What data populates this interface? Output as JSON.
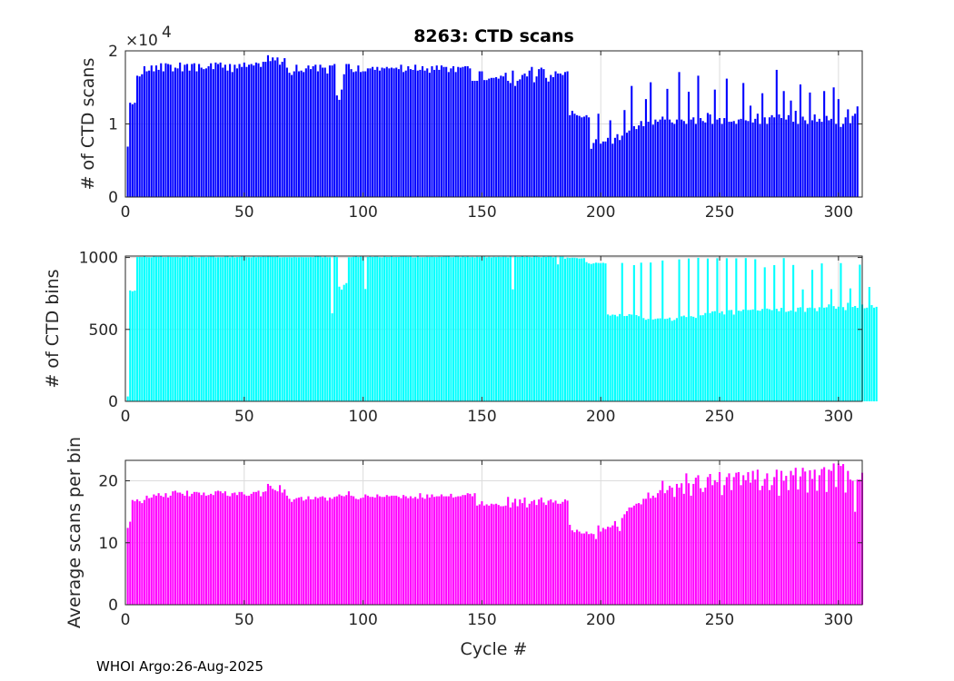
{
  "chart_data": [
    {
      "type": "bar",
      "title": "8263: CTD scans",
      "ylabel": "# of CTD scans",
      "xlabel": "",
      "exponent_label": "×10",
      "exponent_power": "4",
      "xlim": [
        0,
        310
      ],
      "ylim": [
        0,
        2
      ],
      "xticks": [
        "0",
        "50",
        "100",
        "150",
        "200",
        "250",
        "300"
      ],
      "yticks": [
        "0",
        "1",
        "2"
      ],
      "color": "#0000ff",
      "units": "x10^4",
      "x_start": 1,
      "values": [
        0.69,
        1.29,
        1.27,
        1.29,
        1.66,
        1.65,
        1.68,
        1.79,
        1.72,
        1.73,
        1.8,
        1.72,
        1.8,
        1.74,
        1.83,
        1.72,
        1.83,
        1.82,
        1.81,
        1.72,
        1.77,
        1.76,
        1.84,
        1.72,
        1.81,
        1.82,
        1.73,
        1.82,
        1.83,
        1.72,
        1.82,
        1.77,
        1.75,
        1.76,
        1.79,
        1.83,
        1.75,
        1.84,
        1.82,
        1.84,
        1.77,
        1.81,
        1.73,
        1.82,
        1.71,
        1.81,
        1.76,
        1.82,
        1.78,
        1.84,
        1.78,
        1.81,
        1.82,
        1.8,
        1.84,
        1.83,
        1.78,
        1.85,
        1.85,
        1.94,
        1.86,
        1.91,
        1.87,
        1.91,
        1.81,
        1.85,
        1.9,
        1.77,
        1.7,
        1.67,
        1.72,
        1.81,
        1.72,
        1.73,
        1.71,
        1.76,
        1.8,
        1.75,
        1.79,
        1.81,
        1.72,
        1.81,
        1.77,
        1.77,
        1.69,
        1.8,
        1.8,
        1.82,
        1.39,
        1.33,
        1.47,
        1.68,
        1.82,
        1.82,
        1.75,
        1.71,
        1.72,
        1.8,
        1.71,
        1.72,
        1.72,
        1.76,
        1.76,
        1.78,
        1.74,
        1.78,
        1.73,
        1.77,
        1.76,
        1.78,
        1.76,
        1.77,
        1.76,
        1.77,
        1.75,
        1.81,
        1.71,
        1.73,
        1.79,
        1.75,
        1.74,
        1.81,
        1.73,
        1.74,
        1.79,
        1.73,
        1.76,
        1.7,
        1.79,
        1.74,
        1.8,
        1.74,
        1.8,
        1.78,
        1.78,
        1.71,
        1.76,
        1.79,
        1.71,
        1.78,
        1.77,
        1.78,
        1.79,
        1.79,
        1.76,
        1.59,
        1.59,
        1.59,
        1.72,
        1.72,
        1.6,
        1.6,
        1.62,
        1.63,
        1.63,
        1.64,
        1.62,
        1.66,
        1.65,
        1.7,
        1.59,
        1.56,
        1.73,
        1.52,
        1.59,
        1.61,
        1.67,
        1.69,
        1.65,
        1.73,
        1.78,
        1.57,
        1.65,
        1.75,
        1.77,
        1.75,
        1.63,
        1.58,
        1.67,
        1.64,
        1.72,
        1.69,
        1.69,
        1.67,
        1.71,
        1.72,
        1.12,
        1.18,
        1.14,
        1.12,
        1.11,
        1.09,
        1.1,
        1.12,
        1.09,
        0.66,
        0.74,
        0.79,
        1.14,
        0.73,
        0.76,
        0.76,
        0.81,
        1.05,
        0.73,
        0.81,
        0.86,
        0.78,
        0.84,
        1.19,
        0.88,
        0.91,
        1.52,
        0.97,
        0.93,
        0.98,
        1.04,
        0.97,
        1.34,
        1.03,
        1.57,
        0.99,
        1.06,
        1.03,
        1.06,
        1.1,
        1.06,
        1.48,
        1.06,
        1.02,
        1.0,
        1.06,
        1.71,
        1.06,
        1.04,
        1.0,
        1.44,
        1.06,
        1.09,
        1.0,
        1.66,
        1.08,
        1.04,
        1.02,
        1.15,
        1.13,
        1.0,
        1.47,
        1.06,
        1.08,
        1.0,
        1.08,
        1.62,
        1.03,
        1.03,
        1.04,
        1.0,
        1.06,
        1.07,
        1.56,
        1.05,
        1.04,
        1.25,
        1.02,
        1.07,
        1.14,
        1.0,
        1.42,
        1.09,
        1.0,
        1.09,
        1.12,
        1.09,
        1.74,
        1.13,
        1.08,
        1.45,
        1.06,
        1.12,
        1.32,
        1.03,
        1.18,
        1.0,
        1.54,
        1.1,
        1.05,
        1.0,
        1.43,
        1.05,
        1.13,
        1.03,
        1.07,
        1.03,
        1.45,
        1.11,
        1.05,
        1.07,
        1.5,
        1.0,
        1.34,
        0.96,
        1.0,
        1.09,
        1.2,
        1.01,
        1.11,
        1.14,
        1.24
      ]
    },
    {
      "type": "bar",
      "title": "",
      "ylabel": "# of CTD bins",
      "xlabel": "",
      "xlim": [
        0,
        310
      ],
      "ylim": [
        0,
        1010
      ],
      "xticks": [
        "0",
        "50",
        "100",
        "150",
        "200",
        "250",
        "300"
      ],
      "yticks": [
        "0",
        "500",
        "1000"
      ],
      "color": "#00ffff",
      "x_start": 1,
      "values": [
        34,
        771,
        765,
        770,
        1003,
        1004,
        1003,
        1007,
        1003,
        1002,
        1001,
        1007,
        1005,
        1005,
        1007,
        1002,
        1003,
        1005,
        1004,
        1003,
        1003,
        1004,
        1001,
        1005,
        1006,
        1002,
        1006,
        1007,
        1004,
        1002,
        1001,
        1005,
        1005,
        1002,
        1005,
        1006,
        1006,
        1001,
        1002,
        1002,
        1002,
        1006,
        1007,
        1001,
        1006,
        1001,
        1003,
        1004,
        1006,
        1005,
        1003,
        1002,
        1001,
        1006,
        1002,
        1005,
        1004,
        1006,
        1005,
        1006,
        1006,
        1005,
        1005,
        1007,
        1001,
        1002,
        1003,
        1002,
        1003,
        1001,
        1004,
        1002,
        1002,
        1003,
        1002,
        1002,
        1002,
        1003,
        1002,
        1007,
        1007,
        1006,
        1001,
        1006,
        1002,
        1002,
        612,
        1007,
        1003,
        797,
        777,
        810,
        822,
        1002,
        1002,
        1005,
        1007,
        1003,
        1006,
        1004,
        781,
        1004,
        1006,
        1004,
        1006,
        1006,
        1002,
        1001,
        1006,
        1004,
        1004,
        1006,
        1003,
        1004,
        1004,
        1006,
        1006,
        1006,
        1005,
        1006,
        1001,
        1001,
        1007,
        1002,
        1002,
        1003,
        1005,
        1004,
        1005,
        1003,
        1003,
        1005,
        1004,
        1006,
        1006,
        1007,
        1002,
        1002,
        1007,
        1006,
        1001,
        1006,
        1004,
        1006,
        1002,
        1004,
        1001,
        1005,
        1003,
        1005,
        1006,
        1001,
        1005,
        1001,
        1005,
        1003,
        1005,
        1003,
        1005,
        1005,
        1001,
        1006,
        779,
        1006,
        1004,
        1004,
        1007,
        1004,
        1006,
        1004,
        1001,
        1007,
        1006,
        1004,
        1001,
        1006,
        1004,
        1006,
        1006,
        1001,
        1006,
        952,
        1006,
        1006,
        992,
        1000,
        997,
        999,
        999,
        996,
        993,
        994,
        996,
        968,
        959,
        955,
        959,
        964,
        962,
        960,
        963,
        959,
        604,
        596,
        603,
        601,
        591,
        607,
        962,
        593,
        594,
        606,
        603,
        947,
        600,
        592,
        964,
        579,
        567,
        573,
        965,
        569,
        573,
        576,
        577,
        979,
        573,
        575,
        582,
        560,
        566,
        579,
        987,
        591,
        596,
        586,
        993,
        592,
        588,
        580,
        998,
        598,
        599,
        614,
        993,
        614,
        625,
        627,
        995,
        614,
        626,
        604,
        995,
        634,
        635,
        603,
        994,
        630,
        628,
        638,
        996,
        635,
        635,
        639,
        988,
        632,
        630,
        642,
        932,
        645,
        640,
        634,
        947,
        643,
        627,
        650,
        996,
        622,
        626,
        632,
        948,
        623,
        651,
        654,
        778,
        622,
        649,
        652,
        914,
        648,
        627,
        654,
        959,
        651,
        654,
        674,
        780,
        662,
        644,
        658,
        961,
        655,
        634,
        685,
        785,
        656,
        663,
        650,
        950,
        673,
        647,
        651,
        795,
        669,
        651,
        657
      ]
    },
    {
      "type": "bar",
      "title": "",
      "ylabel": "Average scans per bin",
      "xlabel": "Cycle #",
      "xlim": [
        0,
        310
      ],
      "ylim": [
        0,
        23.3
      ],
      "xticks": [
        "0",
        "50",
        "100",
        "150",
        "200",
        "250",
        "300"
      ],
      "yticks": [
        "0",
        "10",
        "20"
      ],
      "color": "#ff00ff",
      "x_start": 1,
      "values": [
        12.4,
        13.4,
        16.9,
        16.7,
        17.0,
        16.7,
        16.4,
        16.9,
        17.6,
        17.2,
        17.3,
        17.8,
        17.6,
        18.0,
        17.6,
        17.4,
        18.0,
        17.3,
        17.6,
        18.3,
        18.4,
        18.1,
        18.1,
        17.9,
        17.6,
        18.4,
        17.5,
        17.9,
        18.2,
        18.2,
        18.1,
        17.7,
        18.1,
        17.6,
        17.7,
        17.9,
        17.7,
        18.3,
        18.4,
        18.3,
        18.0,
        18.3,
        17.6,
        17.5,
        18.0,
        18.1,
        17.7,
        18.2,
        18.2,
        17.8,
        17.6,
        17.6,
        17.9,
        18.2,
        18.2,
        18.4,
        17.5,
        18.2,
        18.3,
        19.5,
        19.2,
        18.7,
        18.5,
        18.3,
        19.3,
        18.1,
        18.6,
        17.6,
        17.1,
        16.6,
        17.0,
        17.2,
        17.3,
        17.4,
        16.8,
        17.0,
        17.5,
        17.0,
        17.0,
        17.4,
        17.2,
        17.4,
        17.5,
        17.3,
        16.8,
        17.3,
        17.1,
        17.4,
        17.5,
        17.8,
        17.6,
        17.5,
        17.7,
        18.3,
        17.6,
        17.5,
        17.1,
        17.0,
        17.2,
        17.3,
        17.8,
        17.6,
        17.4,
        17.4,
        17.3,
        17.8,
        17.5,
        17.4,
        17.4,
        17.7,
        17.5,
        17.6,
        17.6,
        17.6,
        17.4,
        17.2,
        17.7,
        17.5,
        17.2,
        17.5,
        17.2,
        17.4,
        17.1,
        18.0,
        17.3,
        17.1,
        17.8,
        17.3,
        17.8,
        17.4,
        17.5,
        17.5,
        17.8,
        17.5,
        17.5,
        17.5,
        17.9,
        17.3,
        17.4,
        17.5,
        17.5,
        17.7,
        17.7,
        18.0,
        17.9,
        17.5,
        18.0,
        16.0,
        16.2,
        16.7,
        16.0,
        16.2,
        16.0,
        16.3,
        16.2,
        16.3,
        16.1,
        15.9,
        15.9,
        16.0,
        17.4,
        15.7,
        16.5,
        17.1,
        15.9,
        17.0,
        16.4,
        17.3,
        15.7,
        16.3,
        16.7,
        16.9,
        16.1,
        17.0,
        17.3,
        16.5,
        16.1,
        16.8,
        17.0,
        16.5,
        16.8,
        16.3,
        16.3,
        16.6,
        17.0,
        16.8,
        12.9,
        12.0,
        11.7,
        12.1,
        11.8,
        11.5,
        11.5,
        11.8,
        11.4,
        11.5,
        11.4,
        10.6,
        12.8,
        11.8,
        12.4,
        12.2,
        12.6,
        12.5,
        12.8,
        13.5,
        12.6,
        11.9,
        14.0,
        14.6,
        15.1,
        15.7,
        15.7,
        16.0,
        16.3,
        16.4,
        16.2,
        17.1,
        17.1,
        18.1,
        17.2,
        17.6,
        17.3,
        18.0,
        18.5,
        20.0,
        18.0,
        18.5,
        19.2,
        18.9,
        17.4,
        19.5,
        18.9,
        19.6,
        17.9,
        21.2,
        19.6,
        17.6,
        19.5,
        20.5,
        20.9,
        18.8,
        18.2,
        18.9,
        20.6,
        21.1,
        19.3,
        20.1,
        19.8,
        21.4,
        17.7,
        19.3,
        20.6,
        21.2,
        18.5,
        20.6,
        21.3,
        21.4,
        19.3,
        20.9,
        20.1,
        21.4,
        19.7,
        21.6,
        20.2,
        21.8,
        18.5,
        19.2,
        20.3,
        21.2,
        18.5,
        19.3,
        20.6,
        21.8,
        17.6,
        21.6,
        20.0,
        20.8,
        18.5,
        21.6,
        20.9,
        22.1,
        18.6,
        20.7,
        22.1,
        21.5,
        18.1,
        21.7,
        20.3,
        21.8,
        18.4,
        20.9,
        21.9,
        22.2,
        18.2,
        21.8,
        21.6,
        22.8,
        19.0,
        22.8,
        22.4,
        22.7,
        18.1,
        21.6,
        20.2,
        20.0,
        15.0,
        20.2,
        20.2,
        21.3
      ]
    }
  ],
  "footer": {
    "text": "WHOI Argo:26-Aug-2025"
  }
}
